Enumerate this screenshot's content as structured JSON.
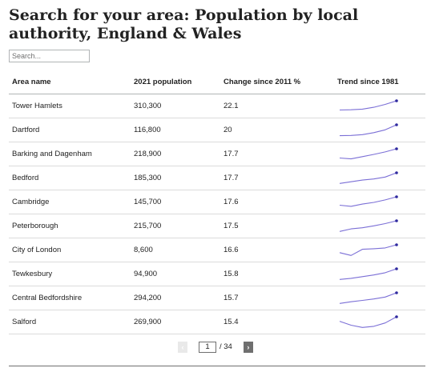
{
  "title": "Search for your area: Population by local authority, England & Wales",
  "search": {
    "placeholder": "Search..."
  },
  "table": {
    "headers": {
      "area": "Area name",
      "population": "2021 population",
      "change": "Change since 2011 %",
      "trend": "Trend since 1981"
    },
    "rows": [
      {
        "area": "Tower Hamlets",
        "population": "310,300",
        "change": "22.1",
        "trend": [
          0.18,
          0.2,
          0.26,
          0.42,
          0.68,
          1.0
        ]
      },
      {
        "area": "Dartford",
        "population": "116,800",
        "change": "20",
        "trend": [
          0.03,
          0.05,
          0.12,
          0.3,
          0.55,
          1.0
        ]
      },
      {
        "area": "Barking and Dagenham",
        "population": "218,900",
        "change": "17.7",
        "trend": [
          0.18,
          0.1,
          0.3,
          0.5,
          0.72,
          1.0
        ]
      },
      {
        "area": "Bedford",
        "population": "185,300",
        "change": "17.7",
        "trend": [
          0.05,
          0.2,
          0.35,
          0.45,
          0.62,
          1.0
        ]
      },
      {
        "area": "Cambridge",
        "population": "145,700",
        "change": "17.6",
        "trend": [
          0.25,
          0.15,
          0.35,
          0.5,
          0.72,
          1.0
        ]
      },
      {
        "area": "Peterborough",
        "population": "215,700",
        "change": "17.5",
        "trend": [
          0.05,
          0.28,
          0.38,
          0.55,
          0.75,
          1.0
        ]
      },
      {
        "area": "City of London",
        "population": "8,600",
        "change": "16.6",
        "trend": [
          0.3,
          0.05,
          0.6,
          0.65,
          0.72,
          1.0
        ]
      },
      {
        "area": "Tewkesbury",
        "population": "94,900",
        "change": "15.8",
        "trend": [
          0.05,
          0.15,
          0.3,
          0.45,
          0.65,
          1.0
        ]
      },
      {
        "area": "Central Bedfordshire",
        "population": "294,200",
        "change": "15.7",
        "trend": [
          0.05,
          0.2,
          0.32,
          0.45,
          0.62,
          1.0
        ]
      },
      {
        "area": "Salford",
        "population": "269,900",
        "change": "15.4",
        "trend": [
          0.6,
          0.25,
          0.05,
          0.15,
          0.45,
          1.0
        ]
      }
    ]
  },
  "pagination": {
    "prev_label": "‹",
    "current_page": "1",
    "total_label": "/ 34",
    "next_label": "›"
  },
  "colors": {
    "sparkline": "#7b6fd6",
    "sparkline_end_dot": "#2f2a9e"
  }
}
